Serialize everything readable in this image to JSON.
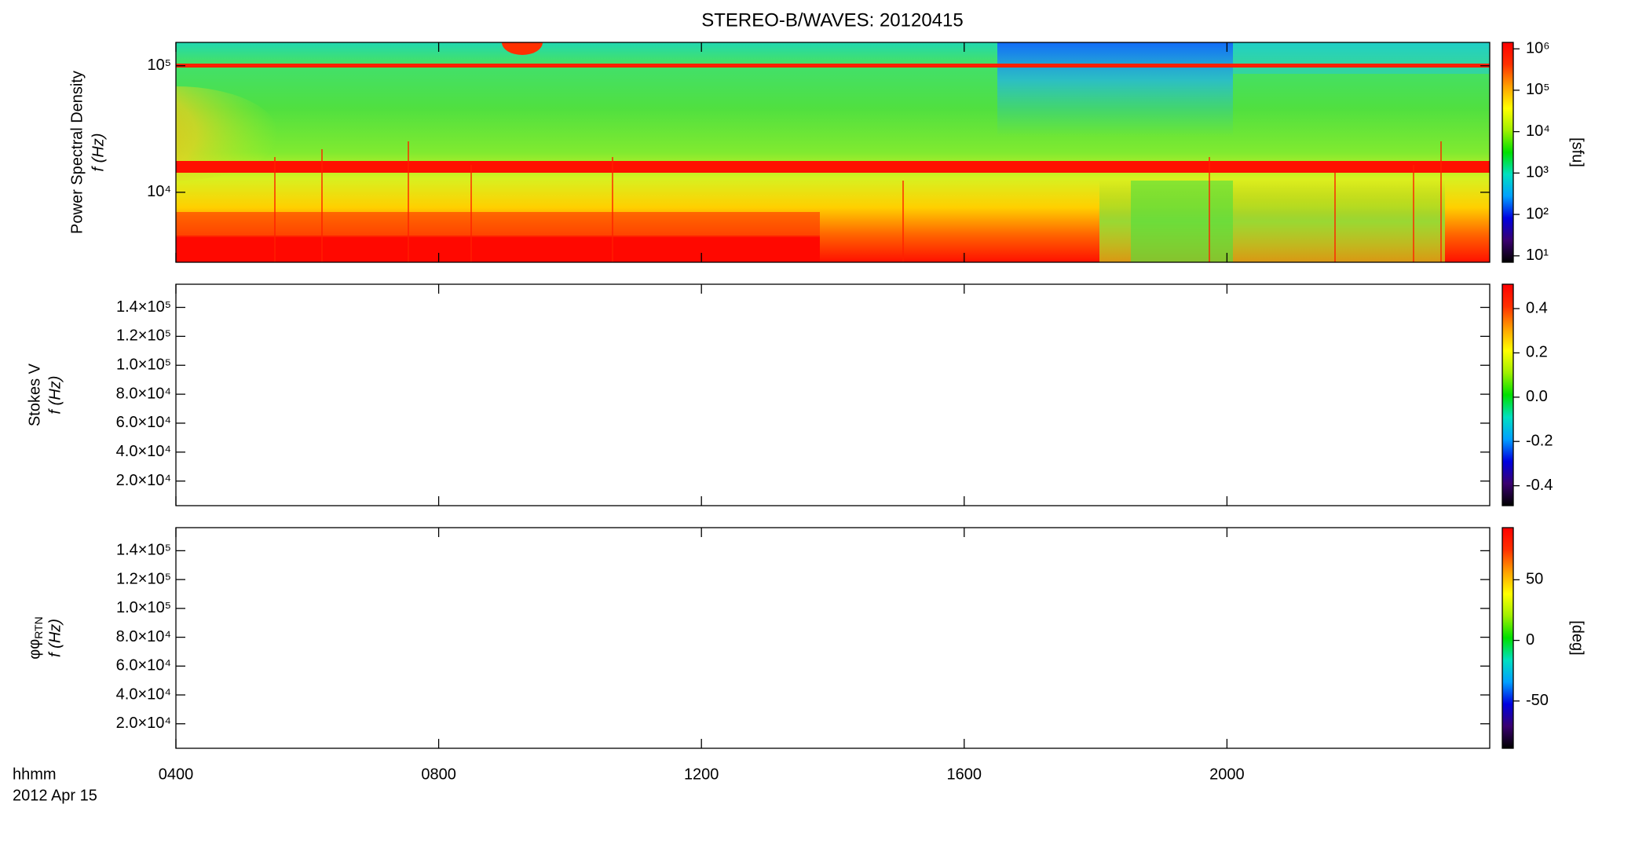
{
  "title": "STEREO-B/WAVES: 20120415",
  "xaxis": {
    "xlim": [
      4,
      24
    ],
    "xticks": [
      {
        "value": 4,
        "label": "0400"
      },
      {
        "value": 8,
        "label": "0800"
      },
      {
        "value": 12,
        "label": "1200"
      },
      {
        "value": 16,
        "label": "1600"
      },
      {
        "value": 20,
        "label": "2000"
      }
    ],
    "label": "hhmm",
    "date": "2012 Apr 15"
  },
  "colormap": [
    "#000000",
    "#3a0070",
    "#0000e0",
    "#00a0ff",
    "#00e0c0",
    "#00e000",
    "#a0f000",
    "#ffff00",
    "#ffa000",
    "#ff3000",
    "#ff0000"
  ],
  "chart_data": [
    {
      "type": "heatmap",
      "ylabel": "Power Spectral Density",
      "ylabel2": "f (Hz)",
      "log_y": true,
      "ylim": [
        2800,
        153000
      ],
      "yticks": [
        {
          "value": 10000,
          "label": "10⁴"
        },
        {
          "value": 100000,
          "label": "10⁵"
        }
      ],
      "colorbar": {
        "log": true,
        "lim": [
          7,
          1430000
        ],
        "ticks": [
          {
            "value": 10,
            "label": "10¹"
          },
          {
            "value": 100,
            "label": "10²"
          },
          {
            "value": 1000,
            "label": "10³"
          },
          {
            "value": 10000,
            "label": "10⁴"
          },
          {
            "value": 100000,
            "label": "10⁵"
          },
          {
            "value": 1000000,
            "label": "10⁶"
          }
        ],
        "label": "[sfu]"
      }
    },
    {
      "type": "heatmap",
      "ylabel": "Stokes V",
      "ylabel2": "f (Hz)",
      "log_y": false,
      "ylim": [
        3000,
        156000
      ],
      "yticks": [
        {
          "value": 20000,
          "label": "2.0×10⁴"
        },
        {
          "value": 40000,
          "label": "4.0×10⁴"
        },
        {
          "value": 60000,
          "label": "6.0×10⁴"
        },
        {
          "value": 80000,
          "label": "8.0×10⁴"
        },
        {
          "value": 100000,
          "label": "1.0×10⁵"
        },
        {
          "value": 120000,
          "label": "1.2×10⁵"
        },
        {
          "value": 140000,
          "label": "1.4×10⁵"
        }
      ],
      "colorbar": {
        "log": false,
        "lim": [
          -0.49,
          0.51
        ],
        "ticks": [
          0.4,
          0.2,
          {
            "value": 0,
            "label": "0.0"
          },
          -0.2,
          -0.4
        ]
      }
    },
    {
      "type": "heatmap",
      "ylabel": "φ",
      "ylabel_sub": "RTN",
      "ylabel2": "f (Hz)",
      "log_y": false,
      "ylim": [
        3000,
        156000
      ],
      "yticks": [
        {
          "value": 20000,
          "label": "2.0×10⁴"
        },
        {
          "value": 40000,
          "label": "4.0×10⁴"
        },
        {
          "value": 60000,
          "label": "6.0×10⁴"
        },
        {
          "value": 80000,
          "label": "8.0×10⁴"
        },
        {
          "value": 100000,
          "label": "1.0×10⁵"
        },
        {
          "value": 120000,
          "label": "1.2×10⁵"
        },
        {
          "value": 140000,
          "label": "1.4×10⁵"
        }
      ],
      "colorbar": {
        "log": false,
        "lim": [
          -89,
          93
        ],
        "ticks": [
          50,
          0,
          -50
        ],
        "label": "[deg]"
      }
    }
  ]
}
